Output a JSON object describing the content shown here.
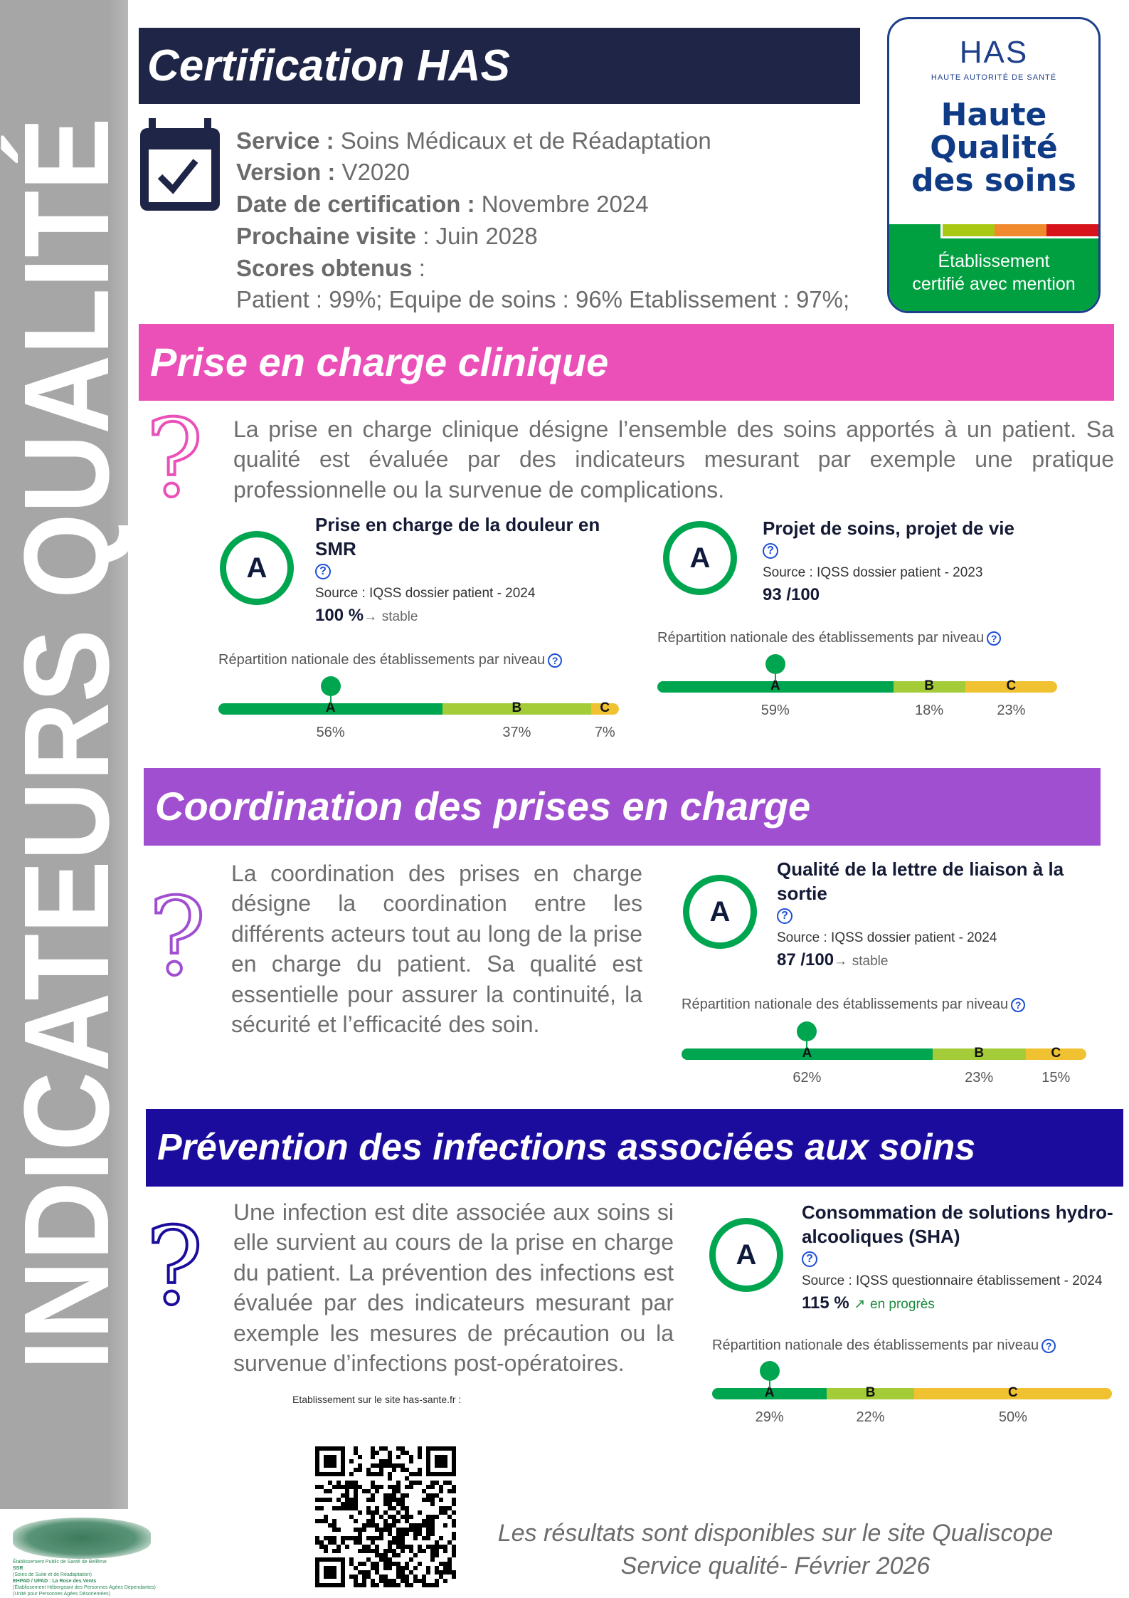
{
  "sidebar": {
    "vertical_title": "INDICATEURS QUALITÉ"
  },
  "header": {
    "title": "Certification HAS"
  },
  "certification": {
    "service_label": "Service :",
    "service_value": " Soins Médicaux et de Réadaptation",
    "version_label": "Version :",
    "version_value": "  V2020",
    "date_label": "Date de certification :",
    "date_value": " Novembre 2024",
    "visit_label": "Prochaine visite",
    "visit_value": " : Juin 2028",
    "scores_label": "Scores obtenus",
    "scores_colon": " :",
    "scores_value": "Patient : 99%; Equipe de soins : 96% Etablissement : 97%;"
  },
  "has_logo": {
    "brand": "HAS",
    "subtitle": "HAUTE AUTORITÉ DE SANTÉ",
    "line1": "Haute",
    "line2": "Qualité",
    "line3": "des soins",
    "mention1": "Établissement",
    "mention2": "certifié avec mention",
    "colors": {
      "navy": "#1e3f8a",
      "green": "#00a040",
      "lime": "#a8c813",
      "orange": "#f08a2c",
      "red": "#d7141c"
    }
  },
  "colors": {
    "level_a": "#00a550",
    "level_b": "#a4cc39",
    "level_c": "#f0c130"
  },
  "repartition_label": "Répartition nationale des établissements par niveau",
  "sections": [
    {
      "title": "Prise en charge clinique",
      "color": "#eb4fb8",
      "description": "La prise en charge clinique désigne l’ensemble des soins apportés à un patient. Sa qualité est évaluée par des indicateurs mesurant par exemple une pratique professionnelle ou la survenue de complications.",
      "indicators": [
        {
          "grade": "A",
          "title": "Prise en charge de la douleur en SMR",
          "source": "Source : IQSS dossier patient - 2024",
          "score": "100 %",
          "trend_icon": "→",
          "trend": "stable",
          "level": "A",
          "distribution": [
            {
              "level": "A",
              "percent": 56
            },
            {
              "level": "B",
              "percent": 37
            },
            {
              "level": "C",
              "percent": 7
            }
          ]
        },
        {
          "grade": "A",
          "title": "Projet de soins, projet de vie",
          "source": "Source : IQSS dossier patient - 2023",
          "score": "93 /100",
          "level": "A",
          "distribution": [
            {
              "level": "A",
              "percent": 59
            },
            {
              "level": "B",
              "percent": 18
            },
            {
              "level": "C",
              "percent": 23
            }
          ]
        }
      ]
    },
    {
      "title": "Coordination des prises en charge",
      "color": "#a04fd0",
      "description": "La coordination des prises en charge désigne la coordination entre les différents acteurs tout au long de la prise en charge du patient. Sa qualité est essentielle pour assurer la continuité, la sécurité et l’efficacité des soin.",
      "indicators": [
        {
          "grade": "A",
          "title": "Qualité de la lettre de liaison à la sortie",
          "source": "Source : IQSS dossier patient - 2024",
          "score": "87 /100",
          "trend_icon": "→",
          "trend": "stable",
          "level": "A",
          "distribution": [
            {
              "level": "A",
              "percent": 62
            },
            {
              "level": "B",
              "percent": 23
            },
            {
              "level": "C",
              "percent": 15
            }
          ]
        }
      ]
    },
    {
      "title": "Prévention des infections associées aux soins",
      "color": "#1b0c9e",
      "description": "Une infection est dite associée aux soins si elle survient au cours de la prise en charge du patient. La prévention des infections est évaluée par des indicateurs mesurant par exemple les mesures de précaution ou la survenue d’infections post-opératoires.",
      "indicators": [
        {
          "grade": "A",
          "title": "Consommation de solutions hydro-alcooliques (SHA)",
          "source": "Source : IQSS questionnaire établissement - 2024",
          "score": "115 %",
          "trend_icon": "↗",
          "trend": "en progrès",
          "level": "A",
          "distribution": [
            {
              "level": "A",
              "percent": 29
            },
            {
              "level": "B",
              "percent": 22
            },
            {
              "level": "C",
              "percent": 50
            }
          ]
        }
      ]
    }
  ],
  "qr_caption": "Etablissement sur le site has-sante.fr :",
  "footer": {
    "line1": "Les résultats sont disponibles sur le site Qualiscope",
    "line2": "Service qualité- Février 2026"
  },
  "establishment_logo": {
    "line1": "Établissement Public de Santé de Bellême",
    "line2": "SSR",
    "line3": "(Soins de Suite et de Réadaptation)",
    "line4": "EHPAD / UPAD : La Rose des Vents",
    "line5": "(Établissement Hébergeant des Personnes Agées Dépendantes)",
    "line6": "(Unité pour Personnes Agées Désorientées)"
  }
}
